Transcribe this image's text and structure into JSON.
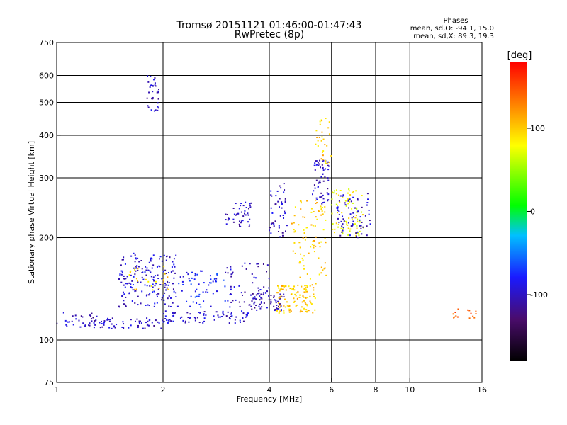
{
  "chart_data": {
    "type": "scatter",
    "title": "Tromsø 20151121 01:46:00-01:47:43",
    "subtitle": "RwPretec (8p)",
    "xlabel": "Frequency [MHz]",
    "ylabel": "Stationary phase Virtual Height [km]",
    "xscale": "log",
    "yscale": "log",
    "xlim": [
      1,
      16
    ],
    "ylim": [
      75,
      750
    ],
    "xticks": [
      1,
      2,
      4,
      6,
      8,
      10,
      16
    ],
    "xtick_labels": [
      "1",
      "2",
      "4",
      "6",
      "8",
      "10",
      "16"
    ],
    "yticks": [
      75,
      100,
      200,
      300,
      400,
      500,
      600,
      750
    ],
    "ytick_labels": [
      "75",
      "100",
      "200",
      "300",
      "400",
      "500",
      "600",
      "750"
    ],
    "x_gridlines": [
      2,
      4,
      6,
      8,
      10
    ],
    "y_gridlines": [
      100,
      200,
      300,
      400,
      500,
      600
    ],
    "grid": true,
    "phases_block": {
      "heading": "Phases",
      "line1": "mean, sd,O: -94.1, 15.0",
      "line2": "mean, sd,X:  89.3, 19.3"
    },
    "colorbar": {
      "label": "[deg]",
      "range": [
        -180,
        180
      ],
      "ticks": [
        100,
        0,
        -100
      ],
      "tick_labels": [
        "100",
        "0",
        "-100"
      ]
    },
    "clusters": [
      {
        "f_range": [
          1.0,
          1.3
        ],
        "h_range": [
          108,
          122
        ],
        "phase": -100,
        "n": 30
      },
      {
        "f_range": [
          1.2,
          2.0
        ],
        "h_range": [
          108,
          116
        ],
        "phase": -100,
        "n": 60
      },
      {
        "f_range": [
          2.0,
          3.5
        ],
        "h_range": [
          112,
          122
        ],
        "phase": -95,
        "n": 80
      },
      {
        "f_range": [
          3.5,
          4.4
        ],
        "h_range": [
          122,
          138
        ],
        "phase": -110,
        "n": 60
      },
      {
        "f_range": [
          1.5,
          2.2
        ],
        "h_range": [
          125,
          180
        ],
        "phase": -95,
        "n": 180
      },
      {
        "f_range": [
          1.6,
          2.1
        ],
        "h_range": [
          140,
          165
        ],
        "phase": 100,
        "n": 25
      },
      {
        "f_range": [
          2.2,
          3.0
        ],
        "h_range": [
          125,
          160
        ],
        "phase": -80,
        "n": 60
      },
      {
        "f_range": [
          3.0,
          4.0
        ],
        "h_range": [
          125,
          170
        ],
        "phase": -100,
        "n": 60
      },
      {
        "f_range": [
          1.8,
          1.95
        ],
        "h_range": [
          470,
          600
        ],
        "phase": -100,
        "n": 35
      },
      {
        "f_range": [
          3.0,
          3.6
        ],
        "h_range": [
          215,
          255
        ],
        "phase": -100,
        "n": 45
      },
      {
        "f_range": [
          4.0,
          4.5
        ],
        "h_range": [
          200,
          290
        ],
        "phase": -100,
        "n": 45
      },
      {
        "f_range": [
          4.2,
          5.4
        ],
        "h_range": [
          120,
          145
        ],
        "phase": 100,
        "n": 110
      },
      {
        "f_range": [
          4.6,
          5.8
        ],
        "h_range": [
          145,
          260
        ],
        "phase": 100,
        "n": 90
      },
      {
        "f_range": [
          5.3,
          5.9
        ],
        "h_range": [
          250,
          340
        ],
        "phase": -100,
        "n": 60
      },
      {
        "f_range": [
          5.4,
          6.0
        ],
        "h_range": [
          330,
          450
        ],
        "phase": 100,
        "n": 30
      },
      {
        "f_range": [
          6.0,
          7.4
        ],
        "h_range": [
          200,
          280
        ],
        "phase": 80,
        "n": 80
      },
      {
        "f_range": [
          6.2,
          7.8
        ],
        "h_range": [
          200,
          270
        ],
        "phase": -100,
        "n": 70
      },
      {
        "f_range": [
          13.0,
          15.5
        ],
        "h_range": [
          115,
          125
        ],
        "phase": 140,
        "n": 15
      }
    ]
  }
}
